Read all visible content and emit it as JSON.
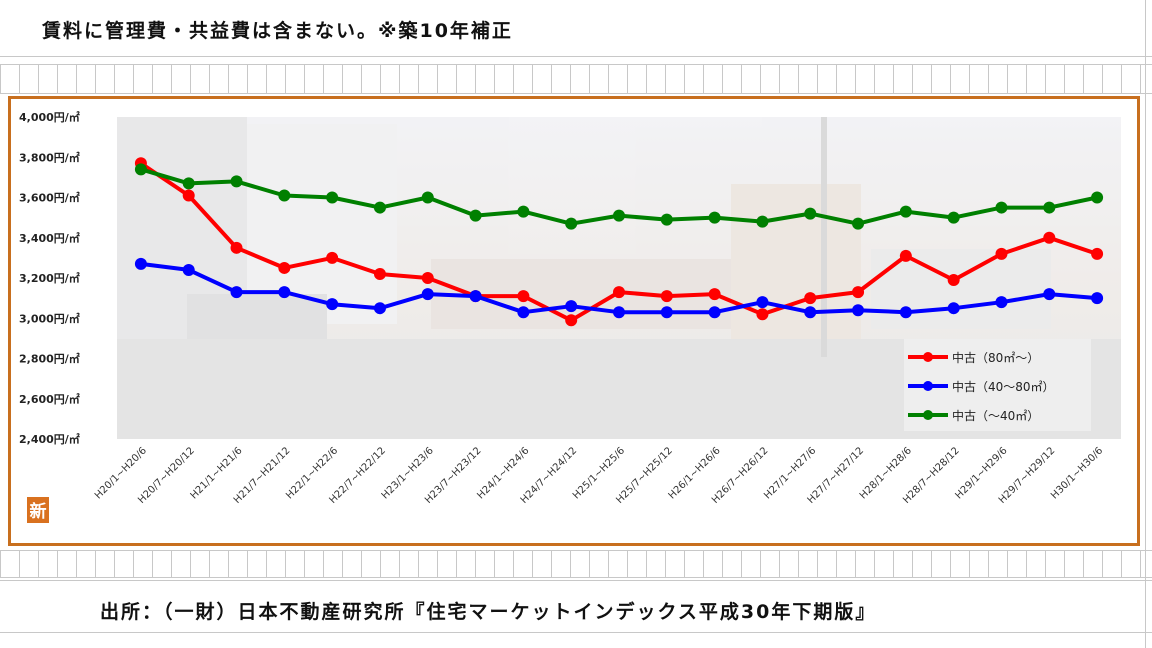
{
  "note": "賃料に管理費・共益費は含まない。※築10年補正",
  "source": "出所：（一財）日本不動産研究所『住宅マーケットインデックス平成30年下期版』",
  "logo_glyph": "新",
  "chart_data": {
    "type": "line",
    "title": "",
    "xlabel": "",
    "ylabel": "",
    "ylim": [
      2400,
      4000
    ],
    "yticks": [
      4000,
      3800,
      3600,
      3400,
      3200,
      3000,
      2800,
      2600,
      2400
    ],
    "ytick_labels": [
      "4,000円/㎡",
      "3,800円/㎡",
      "3,600円/㎡",
      "3,400円/㎡",
      "3,200円/㎡",
      "3,000円/㎡",
      "2,800円/㎡",
      "2,600円/㎡",
      "2,400円/㎡"
    ],
    "categories": [
      "H20/1~H20/6",
      "H20/7~H20/12",
      "H21/1~H21/6",
      "H21/7~H21/12",
      "H22/1~H22/6",
      "H22/7~H22/12",
      "H23/1~H23/6",
      "H23/7~H23/12",
      "H24/1~H24/6",
      "H24/7~H24/12",
      "H25/1~H25/6",
      "H25/7~H25/12",
      "H26/1~H26/6",
      "H26/7~H26/12",
      "H27/1~H27/6",
      "H27/7~H27/12",
      "H28/1~H28/6",
      "H28/7~H28/12",
      "H29/1~H29/6",
      "H29/7~H29/12",
      "H30/1~H30/6"
    ],
    "series": [
      {
        "name": "中古（80㎡～）",
        "color": "#ff0000",
        "values": [
          3770,
          3610,
          3350,
          3250,
          3300,
          3220,
          3200,
          3110,
          3110,
          2990,
          3130,
          3110,
          3120,
          3020,
          3100,
          3130,
          3310,
          3190,
          3320,
          3400,
          3320
        ]
      },
      {
        "name": "中古（40～80㎡）",
        "color": "#0000ff",
        "values": [
          3270,
          3240,
          3130,
          3130,
          3070,
          3050,
          3120,
          3110,
          3030,
          3060,
          3030,
          3030,
          3030,
          3080,
          3030,
          3040,
          3030,
          3050,
          3080,
          3120,
          3100
        ]
      },
      {
        "name": "中古（～40㎡）",
        "color": "#008000",
        "values": [
          3740,
          3670,
          3680,
          3610,
          3600,
          3550,
          3600,
          3510,
          3530,
          3470,
          3510,
          3490,
          3500,
          3480,
          3520,
          3470,
          3530,
          3500,
          3550,
          3550,
          3600
        ]
      }
    ],
    "grid": false,
    "legend_position": "bottom-right"
  }
}
